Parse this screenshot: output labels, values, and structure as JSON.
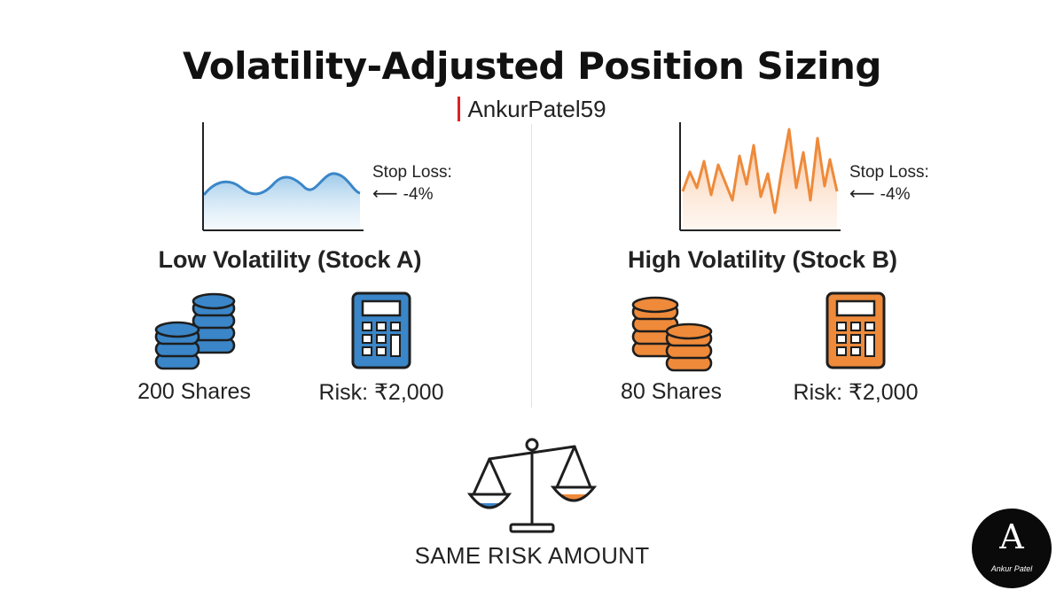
{
  "title": "Volatility-Adjusted Position Sizing",
  "subtitle": "AnkurPatel59",
  "left": {
    "title": "Low Volatility (Stock A)",
    "stop_loss_label": "Stop Loss:",
    "stop_loss_value": "-4%",
    "shares_label": "200 Shares",
    "risk_label": "Risk: ₹2,000",
    "color": "#3a86c8"
  },
  "right": {
    "title": "High Volatility (Stock B)",
    "stop_loss_label": "Stop Loss:",
    "stop_loss_value": "-4%",
    "shares_label": "80 Shares",
    "risk_label": "Risk: ₹2,000",
    "color": "#ee8a3a"
  },
  "footer": "SAME RISK AMOUNT",
  "logo": {
    "mark": "A",
    "name": "Ankur Patel"
  },
  "icons": [
    "wave-chart-icon",
    "coins-icon",
    "calculator-icon",
    "balance-scale-icon",
    "left-arrow-icon"
  ]
}
